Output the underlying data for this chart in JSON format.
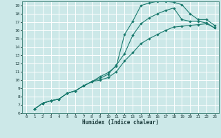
{
  "title": "",
  "xlabel": "Humidex (Indice chaleur)",
  "bg_color": "#cce8e8",
  "grid_color": "#ffffff",
  "line_color": "#1a7a6e",
  "xlim": [
    -0.5,
    23.5
  ],
  "ylim": [
    6,
    19.5
  ],
  "xticks": [
    0,
    1,
    2,
    3,
    4,
    5,
    6,
    7,
    8,
    9,
    10,
    11,
    12,
    13,
    14,
    15,
    16,
    17,
    18,
    19,
    20,
    21,
    22,
    23
  ],
  "yticks": [
    6,
    7,
    8,
    9,
    10,
    11,
    12,
    13,
    14,
    15,
    16,
    17,
    18,
    19
  ],
  "curve1_x": [
    1,
    2,
    3,
    4,
    5,
    6,
    7,
    8,
    9,
    10,
    11,
    12,
    13,
    14,
    15,
    16,
    17,
    18,
    19,
    20,
    21,
    22,
    23
  ],
  "curve1_y": [
    6.5,
    7.2,
    7.5,
    7.7,
    8.4,
    8.7,
    9.3,
    9.8,
    10.4,
    10.9,
    11.7,
    15.5,
    17.1,
    19.0,
    19.3,
    19.5,
    19.5,
    19.4,
    19.1,
    18.0,
    17.3,
    17.3,
    16.6
  ],
  "curve2_x": [
    1,
    2,
    3,
    4,
    5,
    6,
    7,
    8,
    9,
    10,
    11,
    12,
    13,
    14,
    15,
    16,
    17,
    18,
    19,
    20,
    21,
    22,
    23
  ],
  "curve2_y": [
    6.5,
    7.2,
    7.5,
    7.7,
    8.4,
    8.7,
    9.3,
    9.8,
    10.2,
    10.7,
    11.8,
    13.2,
    15.4,
    16.8,
    17.5,
    18.0,
    18.4,
    18.7,
    17.3,
    17.1,
    17.1,
    16.9,
    16.3
  ],
  "curve3_x": [
    1,
    2,
    3,
    4,
    5,
    6,
    7,
    8,
    9,
    10,
    11,
    12,
    13,
    14,
    15,
    16,
    17,
    18,
    19,
    20,
    21,
    22,
    23
  ],
  "curve3_y": [
    6.5,
    7.2,
    7.5,
    7.7,
    8.4,
    8.7,
    9.3,
    9.8,
    10.0,
    10.3,
    11.0,
    12.3,
    13.3,
    14.4,
    15.0,
    15.5,
    16.0,
    16.4,
    16.5,
    16.6,
    16.7,
    16.8,
    16.3
  ]
}
